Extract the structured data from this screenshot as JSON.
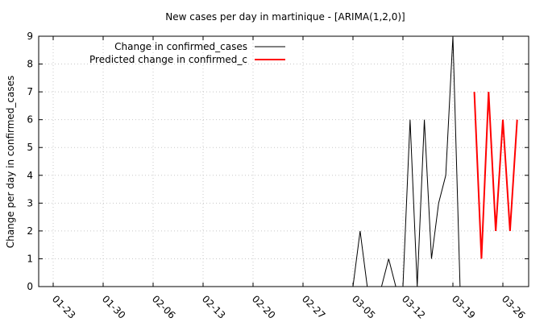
{
  "chart_data": {
    "type": "line",
    "title": "New cases per day in martinique -  [ARIMA(1,2,0)]",
    "xlabel": "",
    "ylabel": "Change per day in confirmed_cases",
    "ylim": [
      0,
      9
    ],
    "yticks": [
      0,
      1,
      2,
      3,
      4,
      5,
      6,
      7,
      8,
      9
    ],
    "x_tick_labels": [
      "01-23",
      "01-30",
      "02-06",
      "02-13",
      "02-20",
      "02-27",
      "03-05",
      "03-12",
      "03-19",
      "03-26"
    ],
    "grid": true,
    "legend_position": "top-left",
    "series": [
      {
        "name": "Change in confirmed_cases",
        "color": "#000000",
        "x": [
          "01-23",
          "01-24",
          "01-25",
          "01-26",
          "01-27",
          "01-28",
          "01-29",
          "01-30",
          "01-31",
          "02-01",
          "02-02",
          "02-03",
          "02-04",
          "02-05",
          "02-06",
          "02-07",
          "02-08",
          "02-09",
          "02-10",
          "02-11",
          "02-12",
          "02-13",
          "02-14",
          "02-15",
          "02-16",
          "02-17",
          "02-18",
          "02-19",
          "02-20",
          "02-21",
          "02-22",
          "02-23",
          "02-24",
          "02-25",
          "02-26",
          "02-27",
          "02-28",
          "02-29",
          "03-01",
          "03-02",
          "03-03",
          "03-04",
          "03-05",
          "03-06",
          "03-07",
          "03-08",
          "03-09",
          "03-10",
          "03-11",
          "03-12",
          "03-13",
          "03-14",
          "03-15",
          "03-16",
          "03-17",
          "03-18",
          "03-19",
          "03-20"
        ],
        "values": [
          0,
          0,
          0,
          0,
          0,
          0,
          0,
          0,
          0,
          0,
          0,
          0,
          0,
          0,
          0,
          0,
          0,
          0,
          0,
          0,
          0,
          0,
          0,
          0,
          0,
          0,
          0,
          0,
          0,
          0,
          0,
          0,
          0,
          0,
          0,
          0,
          0,
          0,
          0,
          0,
          0,
          0,
          0,
          2,
          0,
          0,
          0,
          1,
          0,
          0,
          6,
          0,
          6,
          1,
          3,
          4,
          9,
          0
        ]
      },
      {
        "name": "Predicted change in confirmed_c",
        "color": "#ff0000",
        "x": [
          "03-22",
          "03-23",
          "03-24",
          "03-25",
          "03-26",
          "03-27",
          "03-28"
        ],
        "values": [
          7,
          1,
          7,
          2,
          6,
          2,
          6
        ]
      }
    ]
  }
}
